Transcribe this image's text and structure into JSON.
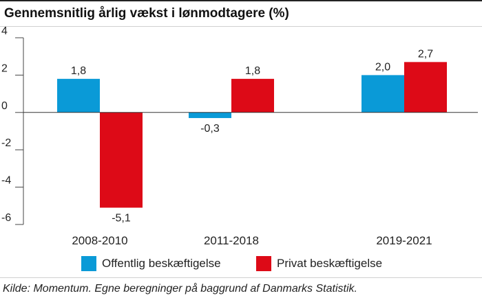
{
  "chart_data": {
    "type": "bar",
    "title": "Gennemsnitlig årlig vækst i lønmodtagere (%)",
    "categories": [
      "2008-2010",
      "2011-2018",
      "2019-2021"
    ],
    "series": [
      {
        "name": "Offentlig beskæftigelse",
        "values": [
          1.8,
          -0.3,
          2.0
        ],
        "labels": [
          "1,8",
          "-0,3",
          "2,0"
        ],
        "color": "#0a9ad7"
      },
      {
        "name": "Privat beskæftigelse",
        "values": [
          -5.1,
          1.8,
          2.7
        ],
        "labels": [
          "-5,1",
          "1,8",
          "2,7"
        ],
        "color": "#dd0a17"
      }
    ],
    "y_ticks": [
      4,
      2,
      0,
      -2,
      -4,
      -6
    ],
    "y_tick_labels": [
      "4",
      "2",
      "0",
      "-2",
      "-4",
      "-6"
    ],
    "ylim": [
      -6,
      4
    ],
    "grid": false,
    "legend_position": "bottom",
    "source": "Kilde: Momentum. Egne beregninger på baggrund af Danmarks Statistik."
  }
}
